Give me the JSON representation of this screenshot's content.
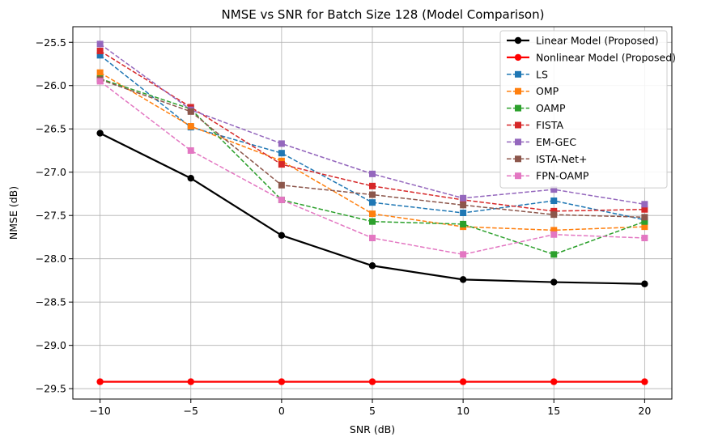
{
  "chart_data": {
    "type": "line",
    "title": "NMSE vs SNR for Batch Size 128 (Model Comparison)",
    "xlabel": "SNR (dB)",
    "ylabel": "NMSE (dB)",
    "x": [
      -10,
      -5,
      0,
      5,
      10,
      15,
      20
    ],
    "xlim": [
      -11.5,
      21.5
    ],
    "ylim": [
      -29.62,
      -25.32
    ],
    "xticks": [
      -10,
      -5,
      0,
      5,
      10,
      15,
      20
    ],
    "xtick_labels": [
      "−10",
      "−5",
      "0",
      "5",
      "10",
      "15",
      "20"
    ],
    "yticks": [
      -25.5,
      -26.0,
      -26.5,
      -27.0,
      -27.5,
      -28.0,
      -28.5,
      -29.0,
      -29.5
    ],
    "ytick_labels": [
      "−25.5",
      "−26.0",
      "−26.5",
      "−27.0",
      "−27.5",
      "−28.0",
      "−28.5",
      "−29.0",
      "−29.5"
    ],
    "grid": true,
    "legend_position": "top-right",
    "series": [
      {
        "name": "Linear Model (Proposed)",
        "color": "#000000",
        "dashed": false,
        "marker": "circle",
        "values": [
          -26.55,
          -27.07,
          -27.73,
          -28.08,
          -28.24,
          -28.27,
          -28.29
        ]
      },
      {
        "name": "Nonlinear Model (Proposed)",
        "color": "#ff0000",
        "dashed": false,
        "marker": "circle",
        "values": [
          -29.42,
          -29.42,
          -29.42,
          -29.42,
          -29.42,
          -29.42,
          -29.42
        ]
      },
      {
        "name": "LS",
        "color": "#1f77b4",
        "dashed": true,
        "marker": "square",
        "values": [
          -25.65,
          -26.48,
          -26.78,
          -27.35,
          -27.47,
          -27.33,
          -27.55
        ]
      },
      {
        "name": "OMP",
        "color": "#ff7f0e",
        "dashed": true,
        "marker": "square",
        "values": [
          -25.85,
          -26.47,
          -26.87,
          -27.48,
          -27.63,
          -27.67,
          -27.63
        ]
      },
      {
        "name": "OAMP",
        "color": "#2ca02c",
        "dashed": true,
        "marker": "square",
        "values": [
          -25.92,
          -26.27,
          -27.32,
          -27.57,
          -27.6,
          -27.95,
          -27.57
        ]
      },
      {
        "name": "FISTA",
        "color": "#d62728",
        "dashed": true,
        "marker": "square",
        "values": [
          -25.6,
          -26.25,
          -26.91,
          -27.16,
          -27.32,
          -27.45,
          -27.43
        ]
      },
      {
        "name": "EM-GEC",
        "color": "#9467bd",
        "dashed": true,
        "marker": "square",
        "values": [
          -25.52,
          -26.28,
          -26.67,
          -27.02,
          -27.3,
          -27.2,
          -27.37
        ]
      },
      {
        "name": "ISTA-Net+",
        "color": "#8c564b",
        "dashed": true,
        "marker": "square",
        "values": [
          -25.93,
          -26.3,
          -27.15,
          -27.26,
          -27.38,
          -27.49,
          -27.52
        ]
      },
      {
        "name": "FPN-OAMP",
        "color": "#e377c2",
        "dashed": true,
        "marker": "square",
        "values": [
          -25.95,
          -26.75,
          -27.32,
          -27.76,
          -27.95,
          -27.72,
          -27.76
        ]
      }
    ]
  }
}
